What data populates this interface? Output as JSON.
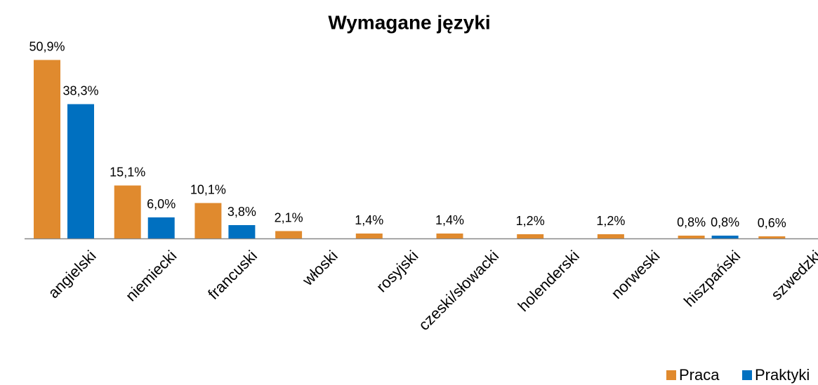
{
  "chart_data": {
    "type": "bar",
    "title": "Wymagane języki",
    "categories": [
      "angielski",
      "niemiecki",
      "francuski",
      "włoski",
      "rosyjski",
      "czeski/słowacki",
      "holenderski",
      "norweski",
      "hiszpański",
      "szwedzki"
    ],
    "series": [
      {
        "name": "Praca",
        "color": "#e08a2e",
        "values": [
          50.9,
          15.1,
          10.1,
          2.1,
          1.4,
          1.4,
          1.2,
          1.2,
          0.8,
          0.6
        ],
        "value_labels": [
          "50,9%",
          "15,1%",
          "10,1%",
          "2,1%",
          "1,4%",
          "1,4%",
          "1,2%",
          "1,2%",
          "0,8%",
          "0,6%"
        ]
      },
      {
        "name": "Praktyki",
        "color": "#0070c0",
        "values": [
          38.3,
          6.0,
          3.8,
          null,
          null,
          null,
          null,
          null,
          0.8,
          null
        ],
        "value_labels": [
          "38,3%",
          "6,0%",
          "3,8%",
          null,
          null,
          null,
          null,
          null,
          "0,8%",
          null
        ]
      }
    ],
    "legend": "bottom-right"
  }
}
